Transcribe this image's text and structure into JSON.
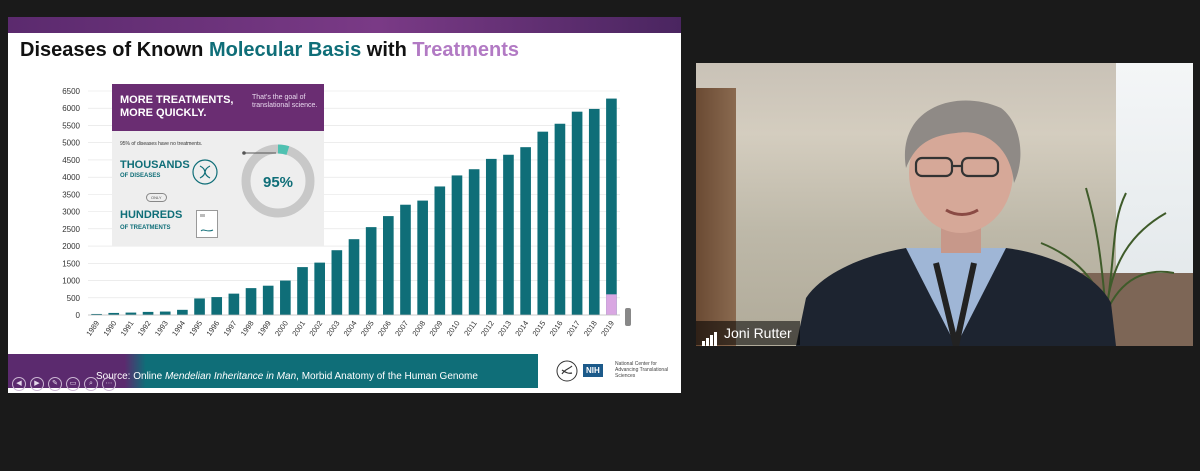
{
  "slide": {
    "title_part1": "Diseases of Known ",
    "title_part2": "Molecular Basis",
    "title_part3": " with ",
    "title_part4": "Treatments",
    "callout": {
      "heading": "MORE TREATMENTS, MORE QUICKLY.",
      "goal": "That's the goal of translational science.",
      "note": "95% of diseases have no treatments.",
      "thousands": "THOUSANDS",
      "of_diseases": "OF DISEASES",
      "only": "ONLY",
      "hundreds": "HUNDREDS",
      "of_treatments": "OF TREATMENTS",
      "percent": "95%",
      "ring_fraction": 0.05
    },
    "source_prefix": "Source: Online ",
    "source_italic": "Mendelian Inheritance in Man",
    "source_suffix": ", Morbid Anatomy of the Human Genome",
    "nih": {
      "logo": "NIH",
      "text": "National Center for Advancing Translational Sciences"
    },
    "controls": [
      "◀",
      "▶",
      "✎",
      "▭",
      "⌕",
      "⋯"
    ]
  },
  "chart_data": {
    "type": "bar",
    "title": "Diseases of Known Molecular Basis with Treatments",
    "categories": [
      "1989",
      "1990",
      "1991",
      "1992",
      "1993",
      "1994",
      "1995",
      "1996",
      "1997",
      "1998",
      "1999",
      "2000",
      "2001",
      "2002",
      "2003",
      "2004",
      "2005",
      "2006",
      "2007",
      "2008",
      "2009",
      "2010",
      "2011",
      "2012",
      "2013",
      "2014",
      "2015",
      "2016",
      "2017",
      "2018",
      "2019"
    ],
    "series": [
      {
        "values": [
          30,
          60,
          70,
          90,
          100,
          150,
          480,
          520,
          620,
          780,
          850,
          1000,
          1390,
          1520,
          1880,
          2200,
          2550,
          2870,
          3200,
          3320,
          3730,
          4050,
          4230,
          4530,
          4650,
          4870,
          5320,
          5550,
          5900,
          5980,
          6280
        ],
        "color": "#0f6e78"
      }
    ],
    "highlight": {
      "category": "2019",
      "value": 600,
      "color": "#d9a7e2"
    },
    "y_ticks": [
      0,
      500,
      1000,
      1500,
      2000,
      2500,
      3000,
      3500,
      4000,
      4500,
      5000,
      5500,
      6000,
      6500
    ],
    "ylim": [
      0,
      6500
    ],
    "grid": true
  },
  "participant": {
    "name": "Joni Rutter"
  }
}
